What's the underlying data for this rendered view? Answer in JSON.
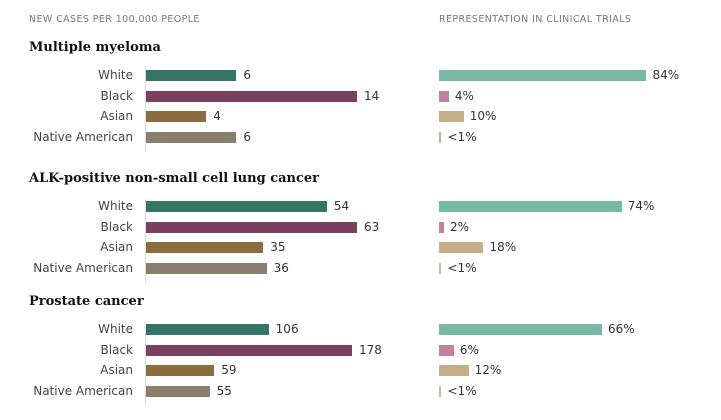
{
  "headers": {
    "left": "NEW CASES PER 100,000 PEOPLE",
    "right": "REPRESENTATION IN CLINICAL TRIALS"
  },
  "colors": {
    "cases": {
      "White": "#347566",
      "Black": "#7b3f5f",
      "Asian": "#8b6d40",
      "Native American": "#8a7f6c"
    },
    "trials": {
      "White": "#78b8a6",
      "Black": "#c082a3",
      "Asian": "#c5ae88",
      "Native American": "#bdb5a8"
    }
  },
  "chart_data": [
    {
      "type": "bar",
      "title": "Multiple myeloma",
      "categories": [
        "White",
        "Black",
        "Asian",
        "Native American"
      ],
      "cases": [
        6,
        14,
        4,
        6
      ],
      "trials": [
        84,
        4,
        10,
        0.5
      ],
      "trial_labels": [
        "84%",
        "4%",
        "10%",
        "<1%"
      ]
    },
    {
      "type": "bar",
      "title": "ALK-positive non-small cell lung cancer",
      "categories": [
        "White",
        "Black",
        "Asian",
        "Native American"
      ],
      "cases": [
        54,
        63,
        35,
        36
      ],
      "trials": [
        74,
        2,
        18,
        0.5
      ],
      "trial_labels": [
        "74%",
        "2%",
        "18%",
        "<1%"
      ]
    },
    {
      "type": "bar",
      "title": "Prostate cancer",
      "categories": [
        "White",
        "Black",
        "Asian",
        "Native American"
      ],
      "cases": [
        106,
        178,
        59,
        55
      ],
      "trials": [
        66,
        6,
        12,
        0.5
      ],
      "trial_labels": [
        "66%",
        "6%",
        "12%",
        "<1%"
      ]
    }
  ]
}
